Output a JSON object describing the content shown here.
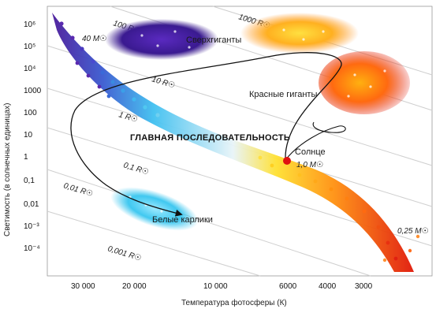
{
  "diagram": {
    "y_axis_label": "Светимость (в солнечных единицах)",
    "x_axis_label": "Температура фотосферы (К)",
    "y_ticks": [
      "10⁶",
      "10⁵",
      "10⁴",
      "1000",
      "100",
      "10",
      "1",
      "0,1",
      "0,01",
      "10⁻³",
      "10⁻⁴"
    ],
    "x_ticks": [
      "30 000",
      "20 000",
      "10 000",
      "6000",
      "4000",
      "3000"
    ],
    "radius_lines": [
      "1000 R☉",
      "100 R☉",
      "10 R☉",
      "1 R☉",
      "0,1 R☉",
      "0,01 R☉",
      "0,001 R☉"
    ],
    "regions": {
      "supergiants": "Сверхгиганты",
      "red_giants": "Красные гиганты",
      "main_sequence": "ГЛАВНАЯ ПОСЛЕДОВАТЕЛЬНОСТЬ",
      "white_dwarfs": "Белые карлики"
    },
    "annotations": {
      "sun_label": "Солнце",
      "sun_mass": "1,0 M☉",
      "mass_40": "40 M☉",
      "mass_025": "0,25 M☉"
    },
    "colors": {
      "hot_star": "#3a1a9a",
      "blue_star": "#2a8ae0",
      "cyan_star": "#40c8f0",
      "yellow_star": "#ffd21a",
      "orange_star": "#ff8a10",
      "red_star": "#e02010",
      "sun": "#e01010",
      "grid_line": "#c8c8c8"
    }
  }
}
